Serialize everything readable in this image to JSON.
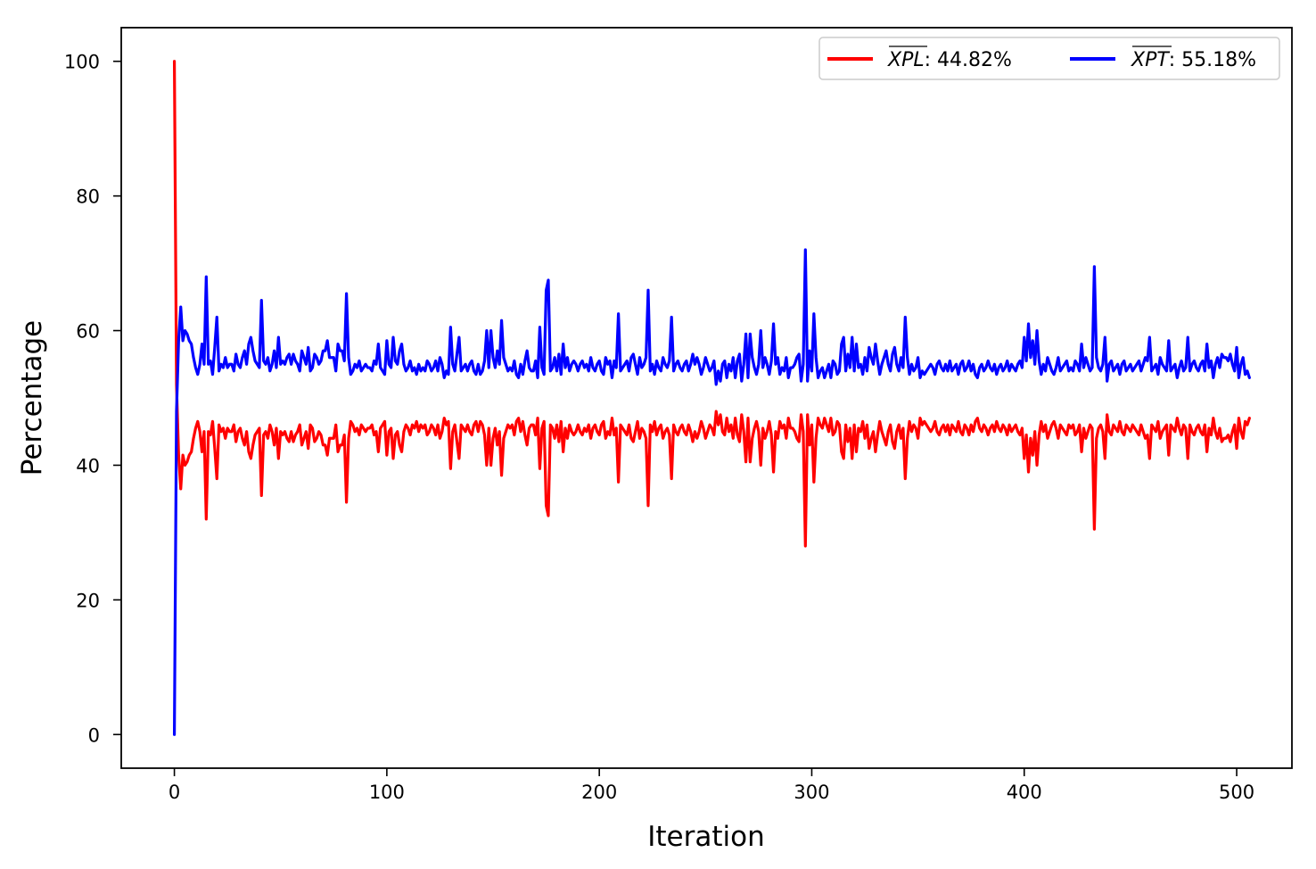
{
  "chart_data": {
    "type": "line",
    "title": "",
    "xlabel": "Iteration",
    "ylabel": "Percentage",
    "xlim": [
      -25,
      526
    ],
    "ylim": [
      -5,
      105
    ],
    "xticks": [
      0,
      100,
      200,
      300,
      400,
      500
    ],
    "yticks": [
      0,
      20,
      40,
      60,
      80,
      100
    ],
    "grid": false,
    "legend_position": "top-right",
    "legend": [
      {
        "symbol": "XPL",
        "value_text": ": 44.82%",
        "color": "#ff0000"
      },
      {
        "symbol": "XPT",
        "value_text": ": 55.18%",
        "color": "#0000ff"
      }
    ],
    "series": [
      {
        "name": "XPL",
        "color": "#ff0000",
        "x_start": 0,
        "values": [
          100,
          52,
          41.5,
          36.5,
          41.5,
          40,
          40.5,
          41.5,
          42,
          44,
          45.5,
          46.5,
          45,
          42,
          45,
          32,
          45,
          44.5,
          46.5,
          42.5,
          38,
          46,
          45,
          45.5,
          44,
          45.5,
          45,
          45,
          46,
          43.5,
          45,
          45.5,
          44,
          43,
          45,
          42,
          41,
          43,
          44.5,
          45,
          45.5,
          35.5,
          44.5,
          45,
          44,
          46,
          45,
          43,
          45.5,
          41,
          45,
          44.5,
          45,
          44,
          43.5,
          45,
          43.5,
          44.5,
          45,
          46,
          43,
          44,
          45,
          42.5,
          46,
          45.5,
          43.5,
          44,
          45,
          44.5,
          43,
          43,
          41.5,
          44,
          44,
          44,
          46,
          42,
          43,
          43,
          44.5,
          34.5,
          44,
          46.5,
          46,
          45,
          45.5,
          44.5,
          46,
          45.5,
          45,
          45.5,
          45.5,
          46,
          44.5,
          45,
          42,
          45.5,
          46,
          46.5,
          41.5,
          45,
          45.5,
          41,
          44.5,
          45,
          43,
          42,
          45,
          46,
          45.5,
          44.5,
          46,
          45.5,
          46.5,
          45,
          46,
          45.5,
          46,
          44.5,
          45,
          46,
          45.5,
          44.5,
          46,
          44,
          45,
          47,
          46,
          46.5,
          39.5,
          45,
          46,
          43.5,
          41,
          46,
          45.5,
          45,
          46,
          45,
          44.5,
          46,
          46.5,
          45,
          46.5,
          46,
          44.5,
          40,
          45.5,
          40,
          44,
          45.5,
          43,
          45,
          38.5,
          44,
          45,
          46,
          45.5,
          46,
          44.5,
          46.5,
          47,
          45,
          46.5,
          44.5,
          43,
          45.5,
          46,
          46,
          44.5,
          47,
          39.5,
          45.5,
          46.5,
          34,
          32.5,
          46,
          45.5,
          44,
          46,
          43.5,
          46.5,
          42,
          45.5,
          44,
          46,
          45,
          44.5,
          45,
          46,
          45,
          44.5,
          45.5,
          45,
          46,
          44,
          45.5,
          46,
          45,
          44.5,
          46,
          46.5,
          44,
          45,
          44.5,
          47,
          44.5,
          45.5,
          37.5,
          46,
          45.5,
          45,
          44.5,
          46,
          44,
          43.5,
          45,
          46.5,
          44,
          45.5,
          45,
          44,
          34,
          46,
          45,
          46.5,
          44.5,
          45.5,
          46,
          44,
          45,
          45.5,
          44.5,
          38,
          46,
          45,
          44.5,
          45.5,
          46,
          45,
          44.5,
          46,
          45,
          43.5,
          45,
          44,
          45,
          46.5,
          45.5,
          44,
          45,
          46,
          45.5,
          44.5,
          48,
          46,
          47.5,
          45,
          44.5,
          47,
          45,
          46,
          44,
          47,
          44.5,
          43.5,
          47.5,
          45,
          40.5,
          47,
          40.5,
          44,
          45.5,
          46.5,
          45,
          40,
          45.5,
          44,
          45,
          46.5,
          44.5,
          39,
          45,
          44,
          46.5,
          45.5,
          46,
          44,
          47,
          45.5,
          45.5,
          45,
          44,
          43.5,
          47.5,
          45,
          28,
          47.5,
          43,
          46,
          37.5,
          44,
          47,
          46,
          45.5,
          47,
          46,
          45,
          47,
          44.5,
          45,
          46.5,
          46,
          42,
          41,
          46,
          43.5,
          45.5,
          41,
          46,
          42,
          45.5,
          45,
          46.5,
          44,
          46,
          42.5,
          44,
          45,
          42,
          44.5,
          46.5,
          45,
          44,
          43,
          45,
          46,
          43.5,
          42.5,
          45,
          46,
          44,
          45.5,
          38,
          44,
          46.5,
          45,
          46,
          45.5,
          44,
          47,
          46,
          46.5,
          46,
          45.5,
          45,
          45.5,
          46.5,
          45,
          44.5,
          45.5,
          46,
          45,
          46,
          44.5,
          46,
          45.5,
          45,
          46.5,
          45,
          44.5,
          46,
          45.5,
          44.5,
          46,
          45,
          46.5,
          47,
          45.5,
          45,
          46,
          45.5,
          44.5,
          45.5,
          46,
          45,
          46.5,
          45.5,
          45,
          46,
          45.5,
          44.5,
          46,
          45,
          45.5,
          46,
          45,
          44.5,
          45.5,
          41,
          44.5,
          39,
          44,
          41.5,
          45,
          40,
          44.5,
          46.5,
          45,
          46,
          44,
          45,
          46,
          46.5,
          45.5,
          44,
          46,
          45.5,
          45,
          44.5,
          46,
          45.5,
          46,
          44.5,
          45,
          46,
          42,
          45.5,
          44,
          45,
          46,
          45.5,
          30.5,
          44,
          45.5,
          46,
          45,
          41,
          47.5,
          45,
          44.5,
          46,
          45.5,
          45,
          46.5,
          45,
          44.5,
          46,
          45.5,
          45,
          46,
          45.5,
          45,
          44.5,
          46,
          45,
          44,
          44.5,
          41,
          46,
          45.5,
          45,
          46.5,
          44,
          45,
          45.5,
          46,
          41.5,
          46,
          45.5,
          45,
          47,
          45.5,
          44.5,
          46,
          45.5,
          41,
          46,
          45,
          44.5,
          45.5,
          46,
          45,
          44.5,
          46,
          42,
          45.5,
          44.5,
          47,
          45,
          44,
          45.5,
          43.5,
          44,
          44,
          44.5,
          43.5,
          45,
          46,
          42.5,
          47,
          45,
          44,
          46.5,
          46,
          47
        ]
      },
      {
        "name": "XPT",
        "color": "#0000ff",
        "x_start": 0,
        "values": [
          0,
          48,
          58.5,
          63.5,
          58.5,
          60,
          59.5,
          58.5,
          58,
          56,
          54.5,
          53.5,
          55,
          58,
          55,
          68,
          55,
          55.5,
          53.5,
          57.5,
          62,
          54,
          55,
          54.5,
          56,
          54.5,
          55,
          55,
          54,
          56.5,
          55,
          54.5,
          56,
          57,
          55,
          58,
          59,
          57,
          55.5,
          55,
          54.5,
          64.5,
          55.5,
          55,
          56,
          54,
          55,
          57,
          54.5,
          59,
          55,
          55.5,
          55,
          56,
          56.5,
          55,
          56.5,
          55.5,
          55,
          54,
          57,
          56,
          55,
          57.5,
          54,
          54.5,
          56.5,
          56,
          55,
          55.5,
          57,
          57,
          58.5,
          56,
          56,
          56,
          54,
          58,
          57,
          57,
          55.5,
          65.5,
          56,
          53.5,
          54,
          55,
          54.5,
          55.5,
          54,
          54.5,
          55,
          54.5,
          54.5,
          54,
          55.5,
          55,
          58,
          54.5,
          54,
          53.5,
          58.5,
          55,
          54.5,
          59,
          55.5,
          55,
          57,
          58,
          55,
          54,
          54.5,
          55.5,
          54,
          54.5,
          53.5,
          55,
          54,
          54.5,
          54,
          55.5,
          55,
          54,
          54.5,
          55.5,
          54,
          56,
          55,
          53,
          54,
          53.5,
          60.5,
          55,
          54,
          56.5,
          59,
          54,
          54.5,
          55,
          54,
          55,
          55.5,
          54,
          53.5,
          55,
          53.5,
          54,
          55.5,
          60,
          54.5,
          60,
          56,
          54.5,
          57,
          55,
          61.5,
          56,
          55,
          54,
          54.5,
          54,
          55.5,
          53.5,
          53,
          55,
          53.5,
          55.5,
          57,
          54.5,
          54,
          54,
          55.5,
          53,
          60.5,
          54.5,
          53.5,
          66,
          67.5,
          54,
          54.5,
          56,
          54,
          56.5,
          53.5,
          58,
          54.5,
          56,
          54,
          55,
          55.5,
          55,
          54,
          55,
          55.5,
          54.5,
          55,
          54,
          56,
          54.5,
          54,
          55,
          55.5,
          54,
          53.5,
          56,
          55,
          55.5,
          53,
          55.5,
          54.5,
          62.5,
          54,
          54.5,
          55,
          55.5,
          54,
          56,
          56.5,
          55,
          53.5,
          56,
          54.5,
          55,
          56,
          66,
          54,
          55,
          53.5,
          55.5,
          54.5,
          54,
          56,
          55,
          54.5,
          55.5,
          62,
          54,
          55,
          55.5,
          54.5,
          54,
          55,
          55.5,
          54,
          55,
          56.5,
          55,
          56,
          55,
          53.5,
          54.5,
          56,
          55,
          54,
          54.5,
          55.5,
          52,
          54,
          52.5,
          55,
          55.5,
          53,
          55,
          54,
          56,
          53,
          55.5,
          56.5,
          52.5,
          55,
          59.5,
          53,
          59.5,
          56,
          54.5,
          53.5,
          55,
          60,
          54.5,
          56,
          55,
          53.5,
          55.5,
          61,
          55,
          56,
          53.5,
          54.5,
          54,
          56,
          53,
          54.5,
          54.5,
          55,
          56,
          56.5,
          52.5,
          55,
          72,
          52.5,
          57,
          54,
          62.5,
          56,
          53,
          54,
          54.5,
          53,
          54,
          55,
          53,
          55.5,
          55,
          53.5,
          54,
          58,
          59,
          54,
          56.5,
          54.5,
          59,
          54,
          58,
          54.5,
          55,
          53.5,
          56,
          54,
          57.5,
          56,
          55,
          58,
          55.5,
          53.5,
          55,
          56,
          57,
          55,
          54,
          56.5,
          57.5,
          55,
          54,
          56,
          54.5,
          62,
          56,
          53.5,
          55,
          54,
          54.5,
          56,
          53,
          54,
          53.5,
          54,
          54.5,
          55,
          54.5,
          53.5,
          55,
          55.5,
          54.5,
          54,
          55,
          54,
          55.5,
          54,
          54.5,
          55,
          53.5,
          55,
          55.5,
          54,
          54.5,
          55.5,
          54,
          55,
          53.5,
          53,
          54.5,
          55,
          54,
          54.5,
          55.5,
          54.5,
          54,
          55,
          53.5,
          54.5,
          55,
          54,
          54.5,
          55.5,
          54,
          55,
          54.5,
          54,
          55,
          55.5,
          54.5,
          59,
          55.5,
          61,
          56,
          58.5,
          55,
          60,
          55.5,
          53.5,
          55,
          54,
          56,
          55,
          54,
          53.5,
          54.5,
          56,
          54,
          54.5,
          55,
          55.5,
          54,
          54.5,
          54,
          55.5,
          55,
          54,
          58,
          54.5,
          56,
          55,
          54,
          54.5,
          69.5,
          56,
          54.5,
          54,
          55,
          59,
          52.5,
          55,
          55.5,
          54,
          54.5,
          55,
          53.5,
          55,
          55.5,
          54,
          54.5,
          55,
          54,
          54.5,
          55,
          55.5,
          54,
          55,
          56,
          55.5,
          59,
          54,
          54.5,
          55,
          53.5,
          56,
          55,
          54.5,
          54,
          58.5,
          54,
          54.5,
          55,
          53,
          54.5,
          55.5,
          54,
          54.5,
          59,
          54,
          55,
          55.5,
          54.5,
          54,
          55,
          55.5,
          54,
          58,
          54.5,
          55.5,
          53,
          55,
          56,
          54.5,
          56.5,
          56,
          56,
          55.5,
          56.5,
          55,
          54,
          57.5,
          53,
          55,
          56,
          53.5,
          54,
          53
        ]
      }
    ]
  }
}
